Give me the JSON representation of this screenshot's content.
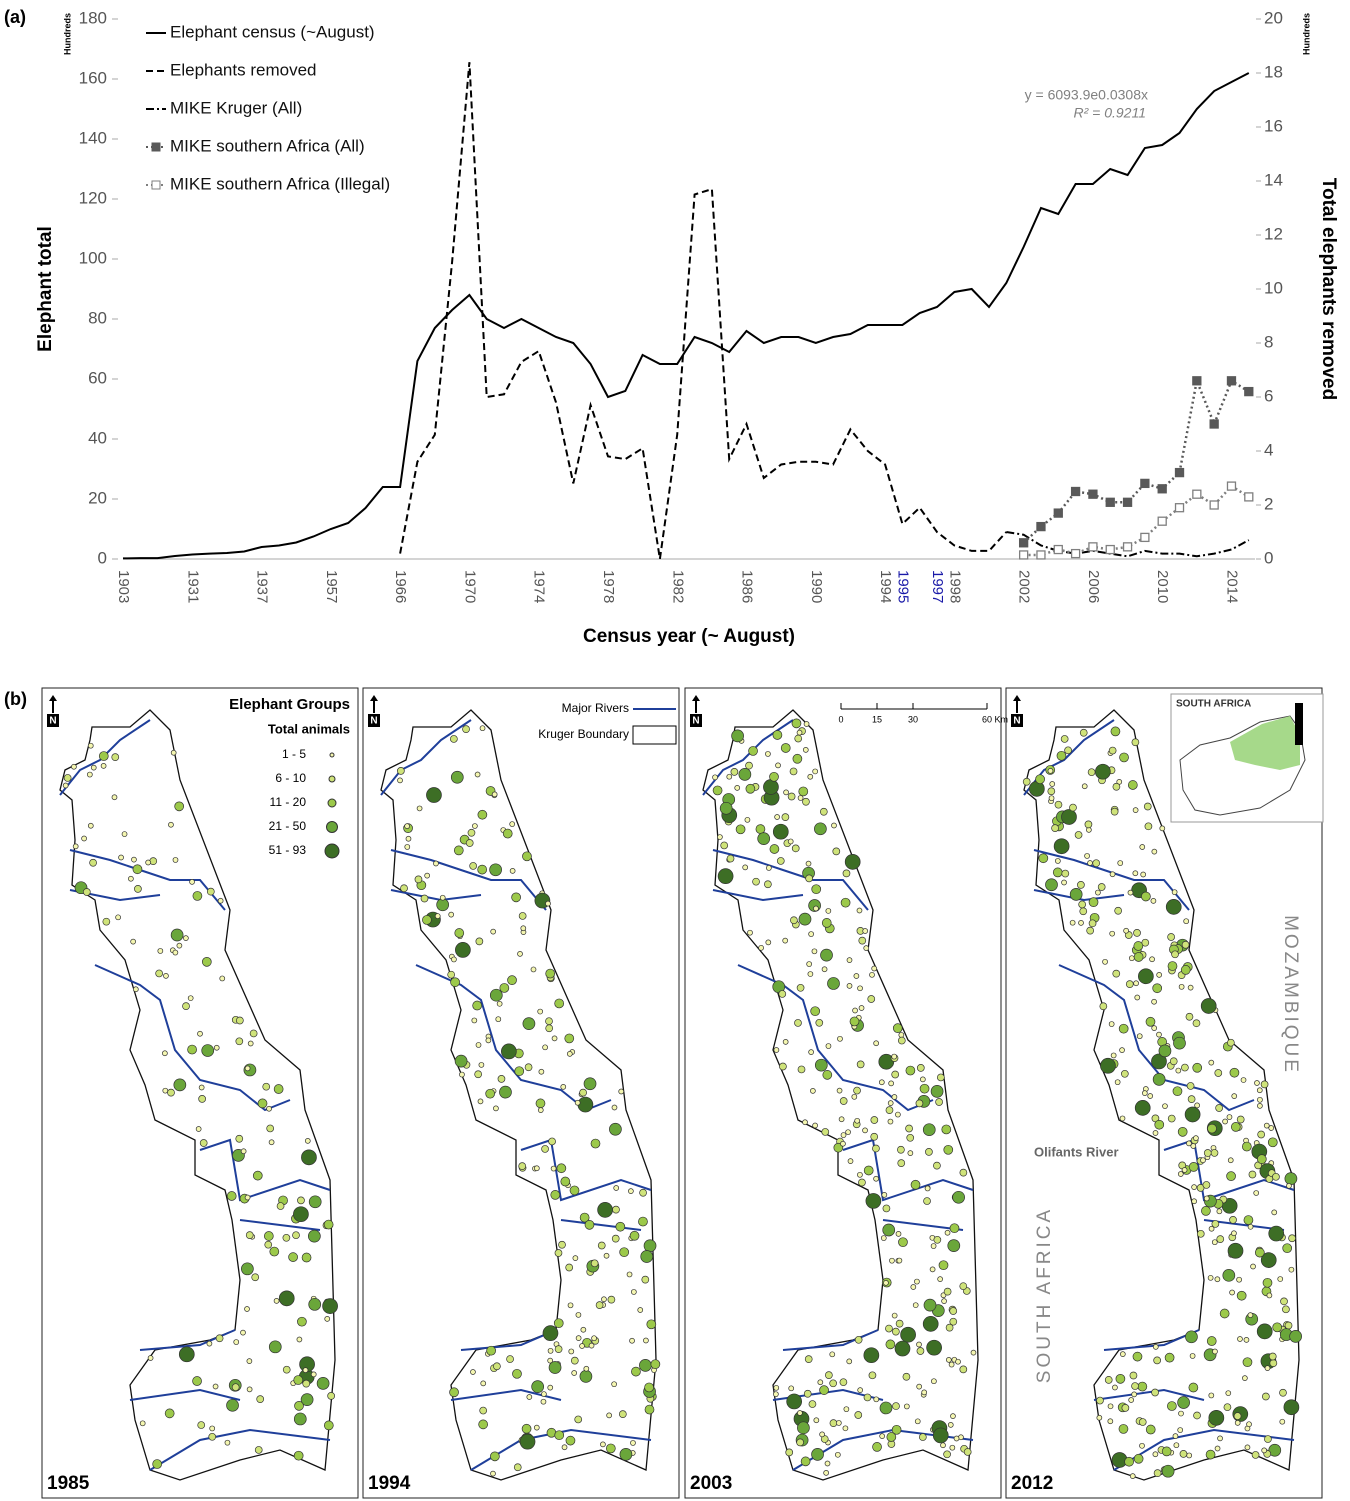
{
  "chart_data": {
    "type": "line",
    "panel_label": "(a)",
    "y_label": "Elephant total",
    "y2_label": "Total elephants removed",
    "x_label": "Census year (~ August)",
    "y_unit": "Hundreds",
    "y2_unit": "Hundreds",
    "categories": [
      "1903",
      null,
      null,
      null,
      "1931",
      null,
      null,
      null,
      "1937",
      null,
      null,
      null,
      "1957",
      null,
      null,
      null,
      "1966",
      null,
      null,
      null,
      "1970",
      null,
      null,
      null,
      "1974",
      null,
      null,
      null,
      "1978",
      null,
      null,
      null,
      "1982",
      null,
      null,
      null,
      "1986",
      null,
      null,
      null,
      "1990",
      null,
      null,
      null,
      "1994",
      "1995",
      null,
      "1997",
      "1998",
      null,
      null,
      null,
      "2002",
      null,
      null,
      null,
      "2006",
      null,
      null,
      null,
      "2010",
      null,
      null,
      null,
      "2014",
      null
    ],
    "highlighted_categories": [
      "1995",
      "1997"
    ],
    "highlight_color": "#1a1aa8",
    "ylim": [
      0,
      180
    ],
    "yticks": [
      0,
      20,
      40,
      60,
      80,
      100,
      120,
      140,
      160,
      180
    ],
    "y2lim": [
      0,
      20
    ],
    "y2ticks": [
      0,
      2,
      4,
      6,
      8,
      10,
      12,
      14,
      16,
      18,
      20
    ],
    "series": [
      {
        "name": "Elephant census (~August)",
        "color": "#000000",
        "style": "solid",
        "axis": "y",
        "values": [
          0.2,
          0.3,
          0.3,
          1,
          1.5,
          1.8,
          2,
          2.5,
          4,
          4.5,
          5.5,
          7.5,
          10,
          12,
          17,
          24,
          24,
          66,
          77,
          83,
          88,
          80,
          77,
          80,
          77,
          74,
          72,
          65,
          54,
          56,
          68,
          65,
          65,
          74,
          72,
          69,
          76,
          72,
          74,
          74,
          72,
          74,
          75,
          78,
          78,
          78,
          82,
          84,
          89,
          90,
          84,
          92,
          104,
          117,
          115,
          125,
          125,
          130,
          128,
          137,
          138,
          142,
          150,
          156,
          159,
          162
        ]
      },
      {
        "name": "Elephants removed",
        "color": "#000000",
        "style": "dash",
        "axis": "y2",
        "values": [
          null,
          null,
          null,
          null,
          null,
          null,
          null,
          null,
          null,
          null,
          null,
          null,
          null,
          null,
          null,
          null,
          0.2,
          3.6,
          4.6,
          11,
          18.4,
          6,
          6.1,
          7.3,
          7.7,
          5.8,
          2.8,
          5.7,
          3.8,
          3.7,
          4.1,
          0,
          4.6,
          13.5,
          13.7,
          3.7,
          5,
          3,
          3.5,
          3.6,
          3.6,
          3.5,
          4.8,
          4,
          3.5,
          1.3,
          1.9,
          1,
          0.5,
          0.3,
          0.3,
          1.0,
          null,
          null,
          null,
          null,
          null,
          null,
          null,
          null,
          null,
          null,
          null,
          null,
          null,
          null
        ]
      },
      {
        "name": "MIKE Kruger (All)",
        "color": "#000000",
        "style": "dashdot",
        "axis": "y2",
        "values": [
          null,
          null,
          null,
          null,
          null,
          null,
          null,
          null,
          null,
          null,
          null,
          null,
          null,
          null,
          null,
          null,
          null,
          null,
          null,
          null,
          null,
          null,
          null,
          null,
          null,
          null,
          null,
          null,
          null,
          null,
          null,
          null,
          null,
          null,
          null,
          null,
          null,
          null,
          null,
          null,
          null,
          null,
          null,
          null,
          null,
          null,
          null,
          null,
          null,
          null,
          null,
          1.0,
          0.9,
          0.5,
          0.3,
          0.2,
          0.3,
          0.2,
          0.1,
          0.3,
          0.2,
          0.2,
          0.1,
          0.2,
          0.35,
          0.7
        ]
      },
      {
        "name": "MIKE southern Africa (All)",
        "color": "#595959",
        "style": "dotted",
        "marker": "square",
        "axis": "y2",
        "values": [
          null,
          null,
          null,
          null,
          null,
          null,
          null,
          null,
          null,
          null,
          null,
          null,
          null,
          null,
          null,
          null,
          null,
          null,
          null,
          null,
          null,
          null,
          null,
          null,
          null,
          null,
          null,
          null,
          null,
          null,
          null,
          null,
          null,
          null,
          null,
          null,
          null,
          null,
          null,
          null,
          null,
          null,
          null,
          null,
          null,
          null,
          null,
          null,
          null,
          null,
          null,
          null,
          0.6,
          1.2,
          1.7,
          2.5,
          2.4,
          2.1,
          2.1,
          2.8,
          2.6,
          3.2,
          6.6,
          5.0,
          6.6,
          6.2
        ]
      },
      {
        "name": "MIKE southern Africa (Illegal)",
        "color": "#7f7f7f",
        "style": "dotted",
        "marker": "open-square",
        "axis": "y2",
        "values": [
          null,
          null,
          null,
          null,
          null,
          null,
          null,
          null,
          null,
          null,
          null,
          null,
          null,
          null,
          null,
          null,
          null,
          null,
          null,
          null,
          null,
          null,
          null,
          null,
          null,
          null,
          null,
          null,
          null,
          null,
          null,
          null,
          null,
          null,
          null,
          null,
          null,
          null,
          null,
          null,
          null,
          null,
          null,
          null,
          null,
          null,
          null,
          null,
          null,
          null,
          null,
          null,
          0.15,
          0.15,
          0.35,
          0.2,
          0.45,
          0.35,
          0.45,
          0.8,
          1.4,
          1.9,
          2.4,
          2.0,
          2.7,
          2.3
        ]
      }
    ],
    "annotations": [
      "y = 6093.9e0.0308x",
      "R² = 0.9211"
    ]
  },
  "maps": {
    "panel_label": "(b)",
    "legend_title": "Elephant Groups",
    "legend_subtitle": "Total animals",
    "size_classes": [
      "1 - 5",
      "6 - 10",
      "11 - 20",
      "21 - 50",
      "51 - 93"
    ],
    "size_colors": [
      "#f4f6b0",
      "#cfe37a",
      "#9cc94a",
      "#6aa63a",
      "#3d6e25"
    ],
    "rivers_label": "Major Rivers",
    "boundary_label": "Kruger Boundary",
    "scale_labels": [
      "0",
      "15",
      "30",
      "60 Km"
    ],
    "inset_label": "SOUTH AFRICA",
    "years": [
      "1985",
      "1994",
      "2003",
      "2012"
    ],
    "north": "N",
    "country_east": "MOZAMBIQUE",
    "country_west": "SOUTH AFRICA",
    "river_label": "Olifants River"
  }
}
